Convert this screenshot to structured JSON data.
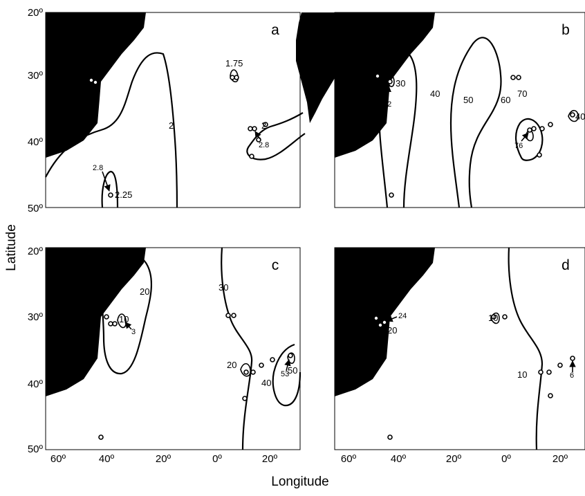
{
  "axes": {
    "y_title": "Latitude",
    "x_title": "Longitude",
    "y_ticks": [
      "20º",
      "30º",
      "40º",
      "50º"
    ],
    "x_ticks": [
      "60º",
      "40º",
      "20º",
      "0º",
      "20º"
    ]
  },
  "panels": {
    "a": {
      "letter": "a",
      "labels": {
        "l1": "1.75",
        "l2": "1.3",
        "l3": "2",
        "l4": "1.75",
        "l5": "2",
        "l6": "2.8",
        "l7": "2.8",
        "l8": "2.25"
      }
    },
    "b": {
      "letter": "b",
      "labels": {
        "l1": "50",
        "l2": "30",
        "l3": "22",
        "l4": "40",
        "l5": "50",
        "l6": "60",
        "l7": "70",
        "l8": "76",
        "l9": "40"
      }
    },
    "c": {
      "letter": "c",
      "labels": {
        "l1": "20",
        "l2": "10",
        "l3": "3",
        "l4": "30",
        "l5": "20",
        "l6": "53",
        "l7": "50",
        "l8": "40"
      }
    },
    "d": {
      "letter": "d",
      "labels": {
        "l1": "10",
        "l2": "6",
        "l3": "24",
        "l4": "20",
        "l5": "10",
        "l6": "10",
        "l7": "6"
      }
    }
  }
}
